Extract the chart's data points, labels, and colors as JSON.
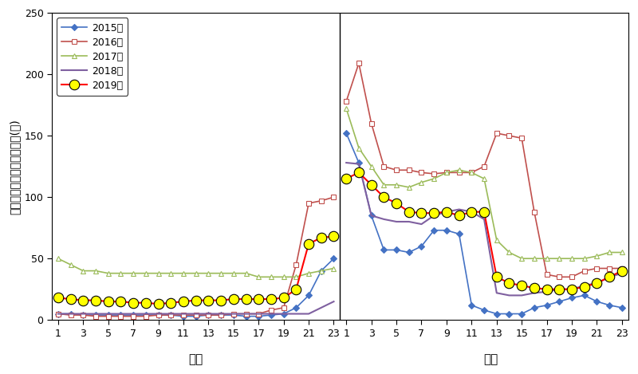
{
  "ylabel": "全国逐小时重污染城市数量(个)",
  "xlabel_left": "除夕",
  "xlabel_right": "初一",
  "ylim": [
    0,
    250
  ],
  "yticks": [
    0,
    50,
    100,
    150,
    200,
    250
  ],
  "n_chuxi": 23,
  "n_chuyi": 23,
  "series": [
    {
      "name": "2015年",
      "color": "#4472C4",
      "marker": "D",
      "markersize": 4,
      "markerfacecolor": "#4472C4",
      "markeredgecolor": "#4472C4",
      "linewidth": 1.2,
      "values_chuxi": [
        5,
        5,
        4,
        4,
        4,
        4,
        4,
        4,
        4,
        4,
        3,
        3,
        4,
        4,
        4,
        3,
        3,
        4,
        5,
        10,
        20,
        40,
        50
      ],
      "values_chuyi": [
        152,
        128,
        85,
        57,
        57,
        55,
        60,
        73,
        73,
        70,
        12,
        8,
        5,
        5,
        5,
        10,
        12,
        15,
        18,
        20,
        15,
        12,
        10
      ]
    },
    {
      "name": "2016年",
      "color": "#C0504D",
      "marker": "s",
      "markersize": 4,
      "markerfacecolor": "#FFFFFF",
      "markeredgecolor": "#C0504D",
      "linewidth": 1.2,
      "values_chuxi": [
        5,
        4,
        4,
        3,
        3,
        3,
        3,
        3,
        4,
        4,
        4,
        4,
        4,
        4,
        5,
        5,
        5,
        8,
        10,
        45,
        95,
        97,
        100
      ],
      "values_chuyi": [
        178,
        209,
        160,
        125,
        122,
        122,
        120,
        119,
        120,
        120,
        120,
        125,
        152,
        150,
        148,
        88,
        37,
        35,
        35,
        40,
        42,
        42,
        42
      ]
    },
    {
      "name": "2017年",
      "color": "#9BBB59",
      "marker": "^",
      "markersize": 4,
      "markerfacecolor": "#FFFFFF",
      "markeredgecolor": "#9BBB59",
      "linewidth": 1.2,
      "values_chuxi": [
        50,
        45,
        40,
        40,
        38,
        38,
        38,
        38,
        38,
        38,
        38,
        38,
        38,
        38,
        38,
        38,
        35,
        35,
        35,
        35,
        38,
        40,
        42
      ],
      "values_chuyi": [
        172,
        140,
        125,
        110,
        110,
        108,
        112,
        115,
        120,
        122,
        120,
        115,
        65,
        55,
        50,
        50,
        50,
        50,
        50,
        50,
        52,
        55,
        55
      ]
    },
    {
      "name": "2018年",
      "color": "#7F60A0",
      "marker": null,
      "markersize": 4,
      "markerfacecolor": "#7F60A0",
      "markeredgecolor": "#7F60A0",
      "linewidth": 1.5,
      "values_chuxi": [
        5,
        5,
        5,
        5,
        5,
        5,
        5,
        5,
        5,
        5,
        5,
        5,
        5,
        5,
        5,
        5,
        5,
        5,
        5,
        5,
        5,
        10,
        15
      ],
      "values_chuyi": [
        128,
        127,
        85,
        82,
        80,
        80,
        78,
        85,
        88,
        90,
        88,
        82,
        22,
        20,
        20,
        22,
        23,
        25,
        25,
        28,
        30,
        35,
        38
      ]
    },
    {
      "name": "2019年",
      "color": "#FF0000",
      "marker": "o",
      "markersize": 9,
      "markerfacecolor": "#FFFF00",
      "markeredgecolor": "#000000",
      "linewidth": 1.5,
      "values_chuxi": [
        18,
        17,
        16,
        16,
        15,
        15,
        14,
        14,
        13,
        14,
        15,
        16,
        16,
        16,
        17,
        17,
        17,
        17,
        18,
        25,
        62,
        67,
        68
      ],
      "values_chuyi": [
        115,
        120,
        110,
        100,
        95,
        88,
        87,
        87,
        88,
        85,
        88,
        88,
        35,
        30,
        28,
        26,
        25,
        25,
        25,
        27,
        30,
        35,
        40
      ]
    }
  ],
  "background_color": "#FFFFFF"
}
